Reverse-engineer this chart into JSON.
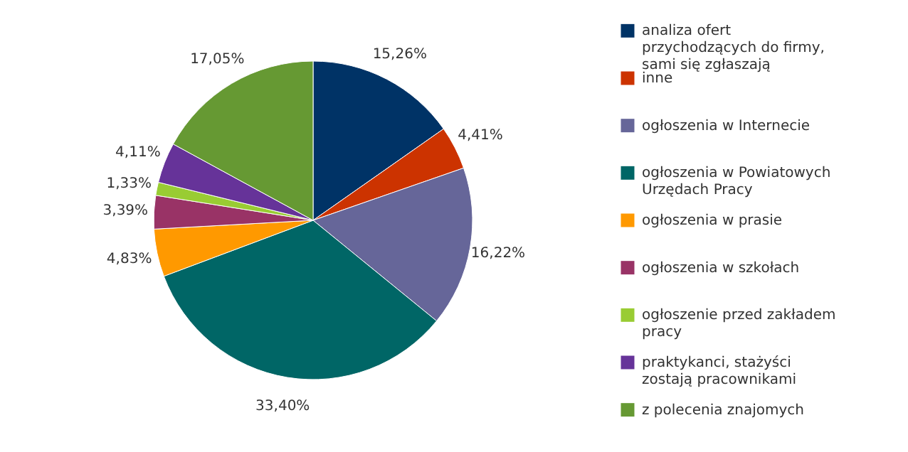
{
  "chart_data": {
    "type": "pie",
    "categories": [
      "analiza ofert przychodzących do firmy, sami się zgłaszają",
      "inne",
      "ogłoszenia w Internecie",
      "ogłoszenia w Powiatowych Urzędach Pracy",
      "ogłoszenia w prasie",
      "ogłoszenia w szkołach",
      "ogłoszenie przed zakładem pracy",
      "praktykanci, stażyści zostają pracownikami",
      "z polecenia znajomych"
    ],
    "values": [
      15.26,
      4.41,
      16.22,
      33.4,
      4.83,
      3.39,
      1.33,
      4.11,
      17.05
    ],
    "value_labels": [
      "15,26%",
      "4,41%",
      "16,22%",
      "33,40%",
      "4,83%",
      "3,39%",
      "1,33%",
      "4,11%",
      "17,05%"
    ],
    "colors": [
      "#003366",
      "#cc3300",
      "#666699",
      "#006666",
      "#ff9900",
      "#993366",
      "#99cc33",
      "#663399",
      "#669933"
    ],
    "legend": "right"
  }
}
